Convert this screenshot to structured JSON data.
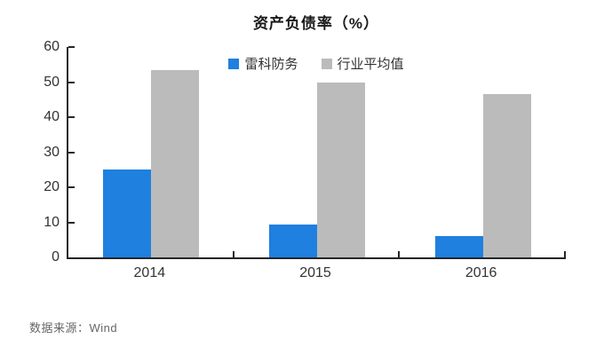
{
  "chart_data": {
    "type": "bar",
    "title": "资产负债率（%）",
    "categories": [
      "2014",
      "2015",
      "2016"
    ],
    "series": [
      {
        "name": "雷科防务",
        "color": "#1F80DF",
        "values": [
          25.0,
          9.3,
          6.2
        ]
      },
      {
        "name": "行业平均值",
        "color": "#BBBBBB",
        "values": [
          53.5,
          50.0,
          46.5
        ]
      }
    ],
    "xlabel": "",
    "ylabel": "",
    "ylim": [
      0,
      60
    ],
    "yticks": [
      0,
      10,
      20,
      30,
      40,
      50,
      60
    ],
    "grid": false,
    "legend_position": "top-center",
    "source": "数据来源：Wind"
  },
  "style": {
    "axis_color": "#262626",
    "label_color": "#333333",
    "title_color": "#1a1a1a",
    "source_color": "#666666",
    "background": "#ffffff"
  }
}
